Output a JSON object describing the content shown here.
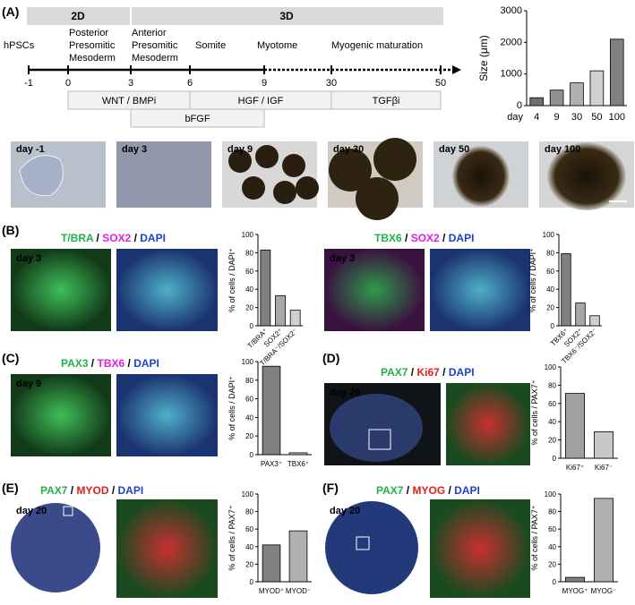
{
  "panel_a": {
    "label": "(A)",
    "phases": [
      "2D",
      "3D"
    ],
    "stages": [
      [
        "hPSCs"
      ],
      [
        "Posterior",
        "Presomitic",
        "Mesoderm"
      ],
      [
        "Anterior",
        "Presomitic",
        "Mesoderm"
      ],
      [
        "Somite"
      ],
      [
        "Myotome"
      ],
      [
        "Myogenic maturation"
      ]
    ],
    "timeline_ticks": [
      -1,
      0,
      3,
      6,
      9,
      30,
      50
    ],
    "factors": [
      "WNT / BMPi",
      "bFGF",
      "HGF / IGF",
      "TGFβi"
    ],
    "size_chart": {
      "type": "bar",
      "ylabel": "Size (μm)",
      "xprefix": "day",
      "categories": [
        "4",
        "9",
        "30",
        "50",
        "100"
      ],
      "values": [
        250,
        490,
        720,
        1100,
        2100
      ],
      "colors": [
        "#707070",
        "#909090",
        "#b0b0b0",
        "#d0d0d0",
        "#808080"
      ],
      "ylim": [
        0,
        3000
      ],
      "yticks": [
        0,
        1000,
        2000,
        3000
      ]
    },
    "images": [
      "day -1",
      "day 3",
      "day 9",
      "day 30",
      "day 50",
      "day 100"
    ]
  },
  "panel_b": {
    "label": "(B)",
    "left": {
      "title": [
        {
          "text": "T/BRA",
          "color": "#22b14c"
        },
        {
          "text": " / ",
          "color": "#000000"
        },
        {
          "text": "SOX2",
          "color": "#e020e0"
        },
        {
          "text": " / ",
          "color": "#000000"
        },
        {
          "text": "DAPI",
          "color": "#1f3fd0"
        }
      ],
      "image_label": "day 3",
      "chart": {
        "type": "bar",
        "ylabel": "% of cells / DAPI⁺",
        "categories": [
          "T/BRA⁺",
          "SOX2⁺",
          "T/BRA⁻/SOX2⁻"
        ],
        "values": [
          83,
          33,
          17
        ],
        "colors": [
          "#808080",
          "#a8a8a8",
          "#d0d0d0"
        ],
        "ylim": [
          0,
          100
        ],
        "yticks": [
          0,
          20,
          40,
          60,
          80,
          100
        ]
      }
    },
    "right": {
      "title": [
        {
          "text": "TBX6",
          "color": "#22b14c"
        },
        {
          "text": " / ",
          "color": "#000000"
        },
        {
          "text": "SOX2",
          "color": "#e020e0"
        },
        {
          "text": " / ",
          "color": "#000000"
        },
        {
          "text": "DAPI",
          "color": "#1f3fd0"
        }
      ],
      "image_label": "day 3",
      "chart": {
        "type": "bar",
        "ylabel": "% of cells / DAPI⁺",
        "categories": [
          "TBX6⁺",
          "SOX2⁺",
          "TBX6⁻/SOX2⁻"
        ],
        "values": [
          79,
          25,
          11
        ],
        "colors": [
          "#808080",
          "#a8a8a8",
          "#d0d0d0"
        ],
        "ylim": [
          0,
          100
        ],
        "yticks": [
          0,
          20,
          40,
          60,
          80,
          100
        ]
      }
    }
  },
  "panel_c": {
    "label": "(C)",
    "title": [
      {
        "text": "PAX3",
        "color": "#22b14c"
      },
      {
        "text": " / ",
        "color": "#000000"
      },
      {
        "text": "TBX6",
        "color": "#e020e0"
      },
      {
        "text": " / ",
        "color": "#000000"
      },
      {
        "text": "DAPI",
        "color": "#1f3fd0"
      }
    ],
    "image_label": "day 9",
    "chart": {
      "type": "bar",
      "ylabel": "% of cells / DAPI⁺",
      "categories": [
        "PAX3⁺",
        "TBX6⁺"
      ],
      "values": [
        95,
        2
      ],
      "colors": [
        "#808080",
        "#c0c0c0"
      ],
      "ylim": [
        0,
        100
      ],
      "yticks": [
        0,
        20,
        40,
        60,
        80,
        100
      ]
    }
  },
  "panel_d": {
    "label": "(D)",
    "title": [
      {
        "text": "PAX7",
        "color": "#22b14c"
      },
      {
        "text": " / ",
        "color": "#000000"
      },
      {
        "text": "Ki67",
        "color": "#e02020"
      },
      {
        "text": " / ",
        "color": "#000000"
      },
      {
        "text": "DAPI",
        "color": "#1f3fd0"
      }
    ],
    "image_label": "day 20",
    "chart": {
      "type": "bar",
      "ylabel": "% of cells / PAX7⁺",
      "categories": [
        "Ki67⁺",
        "Ki67⁻"
      ],
      "values": [
        71,
        29
      ],
      "colors": [
        "#a0a0a0",
        "#c8c8c8"
      ],
      "ylim": [
        0,
        100
      ],
      "yticks": [
        0,
        20,
        40,
        60,
        80,
        100
      ]
    }
  },
  "panel_e": {
    "label": "(E)",
    "title": [
      {
        "text": "PAX7",
        "color": "#22b14c"
      },
      {
        "text": " / ",
        "color": "#000000"
      },
      {
        "text": "MYOD",
        "color": "#e02020"
      },
      {
        "text": " / ",
        "color": "#000000"
      },
      {
        "text": "DAPI",
        "color": "#1f3fd0"
      }
    ],
    "image_label": "day 20",
    "chart": {
      "type": "bar",
      "ylabel": "% of cells / PAX7⁺",
      "categories": [
        "MYOD⁺",
        "MYOD⁻"
      ],
      "values": [
        42,
        58
      ],
      "colors": [
        "#808080",
        "#b0b0b0"
      ],
      "ylim": [
        0,
        100
      ],
      "yticks": [
        0,
        20,
        40,
        60,
        80,
        100
      ]
    }
  },
  "panel_f": {
    "label": "(F)",
    "title": [
      {
        "text": "PAX7",
        "color": "#22b14c"
      },
      {
        "text": " / ",
        "color": "#000000"
      },
      {
        "text": "MYOG",
        "color": "#e02020"
      },
      {
        "text": " / ",
        "color": "#000000"
      },
      {
        "text": "DAPI",
        "color": "#1f3fd0"
      }
    ],
    "image_label": "day 20",
    "chart": {
      "type": "bar",
      "ylabel": "% of cells / PAX7⁺",
      "categories": [
        "MYOG⁺",
        "MYOG⁻"
      ],
      "values": [
        5,
        95
      ],
      "colors": [
        "#808080",
        "#b0b0b0"
      ],
      "ylim": [
        0,
        100
      ],
      "yticks": [
        0,
        20,
        40,
        60,
        80,
        100
      ]
    }
  }
}
